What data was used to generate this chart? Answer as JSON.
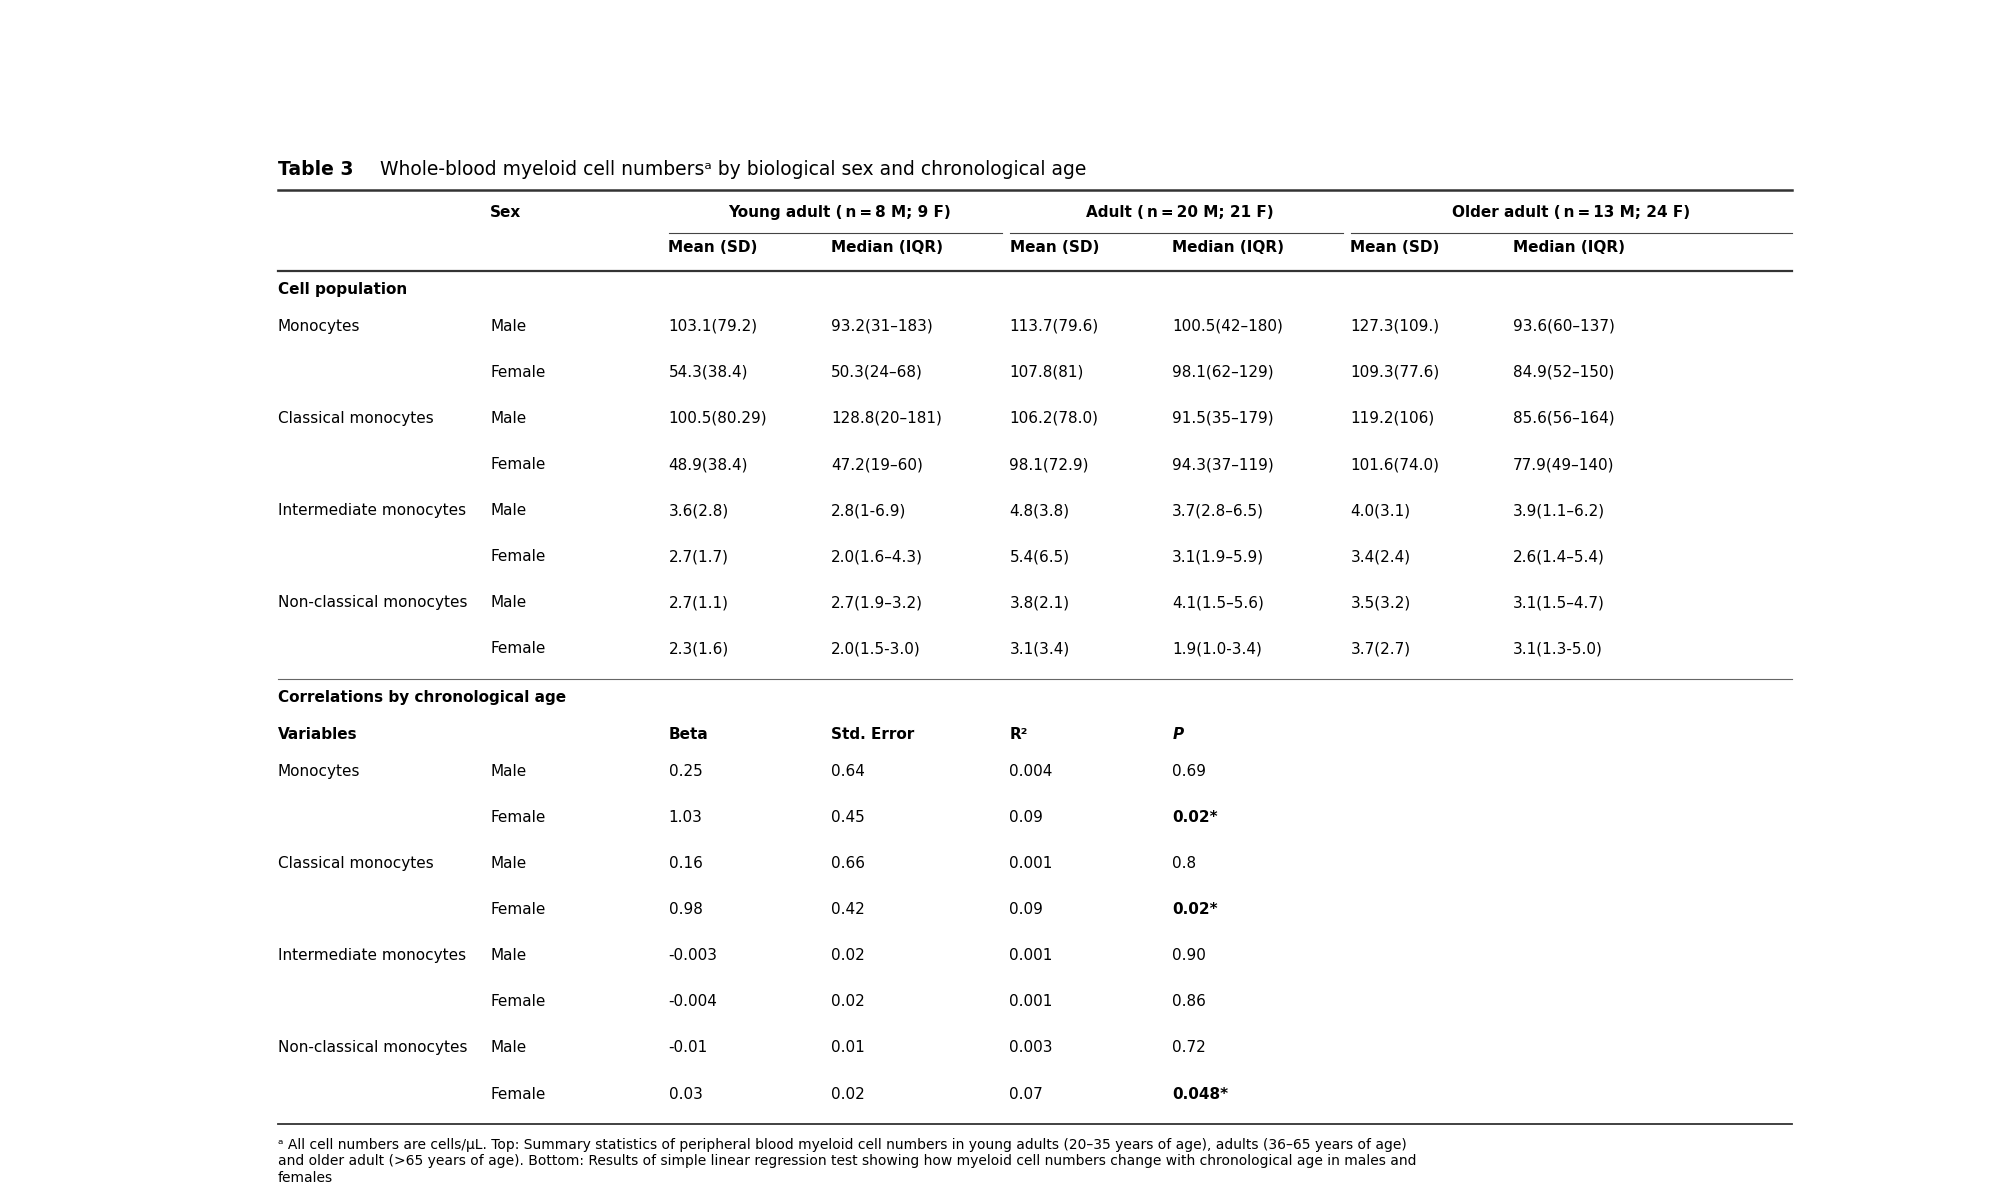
{
  "title_bold": "Table 3",
  "title_rest": " Whole-blood myeloid cell numbersᵃ by biological sex and chronological age",
  "section1_header": "Cell population",
  "top_rows": [
    [
      "Monocytes",
      "Male",
      "103.1(79.2)",
      "93.2(31–183)",
      "113.7(79.6)",
      "100.5(42–180)",
      "127.3(109.)",
      "93.6(60–137)"
    ],
    [
      "",
      "Female",
      "54.3(38.4)",
      "50.3(24–68)",
      "107.8(81)",
      "98.1(62–129)",
      "109.3(77.6)",
      "84.9(52–150)"
    ],
    [
      "Classical monocytes",
      "Male",
      "100.5(80.29)",
      "128.8(20–181)",
      "106.2(78.0)",
      "91.5(35–179)",
      "119.2(106)",
      "85.6(56–164)"
    ],
    [
      "",
      "Female",
      "48.9(38.4)",
      "47.2(19–60)",
      "98.1(72.9)",
      "94.3(37–119)",
      "101.6(74.0)",
      "77.9(49–140)"
    ],
    [
      "Intermediate monocytes",
      "Male",
      "3.6(2.8)",
      "2.8(1-6.9)",
      "4.8(3.8)",
      "3.7(2.8–6.5)",
      "4.0(3.1)",
      "3.9(1.1–6.2)"
    ],
    [
      "",
      "Female",
      "2.7(1.7)",
      "2.0(1.6–4.3)",
      "5.4(6.5)",
      "3.1(1.9–5.9)",
      "3.4(2.4)",
      "2.6(1.4–5.4)"
    ],
    [
      "Non-classical monocytes",
      "Male",
      "2.7(1.1)",
      "2.7(1.9–3.2)",
      "3.8(2.1)",
      "4.1(1.5–5.6)",
      "3.5(3.2)",
      "3.1(1.5–4.7)"
    ],
    [
      "",
      "Female",
      "2.3(1.6)",
      "2.0(1.5-3.0)",
      "3.1(3.4)",
      "1.9(1.0-3.4)",
      "3.7(2.7)",
      "3.1(1.3-5.0)"
    ]
  ],
  "section2_header": "Correlations by chronological age",
  "corr_rows": [
    [
      "Monocytes",
      "Male",
      "0.25",
      "0.64",
      "0.004",
      "0.69",
      false
    ],
    [
      "",
      "Female",
      "1.03",
      "0.45",
      "0.09",
      "0.02*",
      true
    ],
    [
      "Classical monocytes",
      "Male",
      "0.16",
      "0.66",
      "0.001",
      "0.8",
      false
    ],
    [
      "",
      "Female",
      "0.98",
      "0.42",
      "0.09",
      "0.02*",
      true
    ],
    [
      "Intermediate monocytes",
      "Male",
      "-0.003",
      "0.02",
      "0.001",
      "0.90",
      false
    ],
    [
      "",
      "Female",
      "-0.004",
      "0.02",
      "0.001",
      "0.86",
      false
    ],
    [
      "Non-classical monocytes",
      "Male",
      "-0.01",
      "0.01",
      "0.003",
      "0.72",
      false
    ],
    [
      "",
      "Female",
      "0.03",
      "0.02",
      "0.07",
      "0.048*",
      true
    ]
  ],
  "footnote_super": "ᵃ",
  "footnote_rest": " All cell numbers are cells/μL. Top: Summary statistics of peripheral blood myeloid cell numbers in young adults (20–35 years of age), adults (36–65 years of age)\nand older adult (>65 years of age). Bottom: Results of simple linear regression test showing how myeloid cell numbers change with chronological age in males and\nfemales",
  "bg_color": "#ffffff",
  "text_color": "#000000"
}
